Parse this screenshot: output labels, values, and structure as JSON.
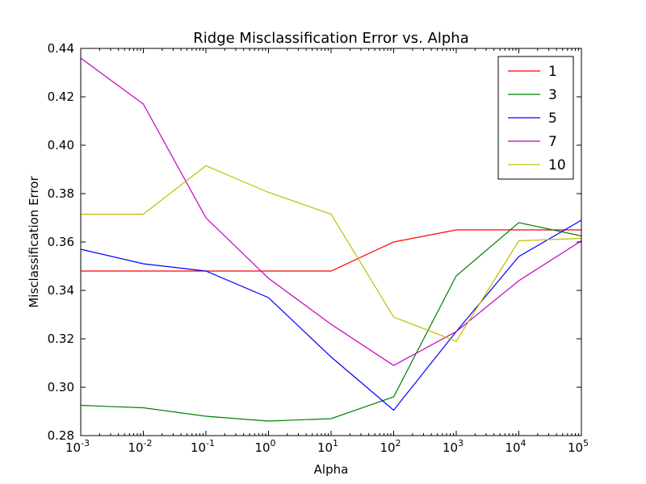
{
  "chart_data": {
    "type": "line",
    "title": "Ridge Misclassification Error vs. Alpha",
    "xlabel": "Alpha",
    "ylabel": "Misclassification Error",
    "xscale": "log",
    "xlim": [
      0.001,
      100000
    ],
    "ylim": [
      0.28,
      0.44
    ],
    "x": [
      0.001,
      0.01,
      0.1,
      1,
      10,
      100,
      1000,
      10000,
      100000
    ],
    "x_tick_labels": [
      {
        "base": "10",
        "exp": "-3"
      },
      {
        "base": "10",
        "exp": "-2"
      },
      {
        "base": "10",
        "exp": "-1"
      },
      {
        "base": "10",
        "exp": "0"
      },
      {
        "base": "10",
        "exp": "1"
      },
      {
        "base": "10",
        "exp": "2"
      },
      {
        "base": "10",
        "exp": "3"
      },
      {
        "base": "10",
        "exp": "4"
      },
      {
        "base": "10",
        "exp": "5"
      }
    ],
    "y_ticks": [
      0.28,
      0.3,
      0.32,
      0.34,
      0.36,
      0.38,
      0.4,
      0.42,
      0.44
    ],
    "y_tick_labels": [
      "0.28",
      "0.30",
      "0.32",
      "0.34",
      "0.36",
      "0.38",
      "0.40",
      "0.42",
      "0.44"
    ],
    "grid": false,
    "legend_position": "top-right",
    "series": [
      {
        "name": "1",
        "color": "#ff0000",
        "values": [
          0.348,
          0.348,
          0.348,
          0.348,
          0.348,
          0.36,
          0.365,
          0.365,
          0.365
        ]
      },
      {
        "name": "3",
        "color": "#008000",
        "values": [
          0.2925,
          0.2915,
          0.288,
          0.286,
          0.287,
          0.296,
          0.346,
          0.368,
          0.3625
        ]
      },
      {
        "name": "5",
        "color": "#0000ff",
        "values": [
          0.357,
          0.351,
          0.348,
          0.337,
          0.3125,
          0.2905,
          0.323,
          0.354,
          0.369
        ]
      },
      {
        "name": "7",
        "color": "#bf00bf",
        "values": [
          0.436,
          0.417,
          0.37,
          0.345,
          0.326,
          0.309,
          0.323,
          0.344,
          0.3605
        ]
      },
      {
        "name": "10",
        "color": "#bfbf00",
        "values": [
          0.3715,
          0.3715,
          0.3915,
          0.3805,
          0.3715,
          0.329,
          0.319,
          0.3605,
          0.3615
        ]
      }
    ]
  }
}
